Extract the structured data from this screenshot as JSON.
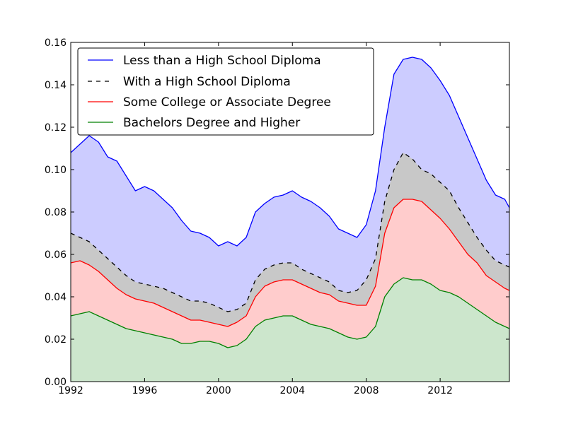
{
  "chart_data": {
    "type": "area",
    "title": "",
    "xlabel": "",
    "ylabel": "",
    "xlim": [
      1992,
      2015.75
    ],
    "ylim": [
      0,
      0.16
    ],
    "x_ticks": [
      1992,
      1996,
      2000,
      2004,
      2008,
      2012
    ],
    "x_tick_labels": [
      "1992",
      "1996",
      "2000",
      "2004",
      "2008",
      "2012"
    ],
    "y_ticks": [
      0,
      0.02,
      0.04,
      0.06,
      0.08,
      0.1,
      0.12,
      0.14,
      0.16
    ],
    "y_tick_labels": [
      "0.00",
      "0.02",
      "0.04",
      "0.06",
      "0.08",
      "0.10",
      "0.12",
      "0.14",
      "0.16"
    ],
    "grid": false,
    "legend": {
      "position": "top-left",
      "entries": [
        "Less than a High School Diploma",
        "With a High School Diploma",
        "Some College or Associate Degree",
        "Bachelors Degree and Higher"
      ]
    },
    "x": [
      1992,
      1992.5,
      1993,
      1993.5,
      1994,
      1994.5,
      1995,
      1995.5,
      1996,
      1996.5,
      1997,
      1997.5,
      1998,
      1998.5,
      1999,
      1999.5,
      2000,
      2000.5,
      2001,
      2001.5,
      2002,
      2002.5,
      2003,
      2003.5,
      2004,
      2004.5,
      2005,
      2005.5,
      2006,
      2006.5,
      2007,
      2007.5,
      2008,
      2008.5,
      2009,
      2009.5,
      2010,
      2010.5,
      2011,
      2011.5,
      2012,
      2012.5,
      2013,
      2013.5,
      2014,
      2014.5,
      2015,
      2015.5,
      2015.75
    ],
    "series": [
      {
        "name": "Less than a High School Diploma",
        "color": "#0000ff",
        "fill": "#ccccff",
        "line_style": "solid",
        "values": [
          0.108,
          0.112,
          0.116,
          0.113,
          0.106,
          0.104,
          0.097,
          0.09,
          0.092,
          0.09,
          0.086,
          0.082,
          0.076,
          0.071,
          0.07,
          0.068,
          0.064,
          0.066,
          0.064,
          0.068,
          0.08,
          0.084,
          0.087,
          0.088,
          0.09,
          0.087,
          0.085,
          0.082,
          0.078,
          0.072,
          0.07,
          0.068,
          0.074,
          0.09,
          0.12,
          0.145,
          0.152,
          0.153,
          0.152,
          0.148,
          0.142,
          0.135,
          0.125,
          0.115,
          0.105,
          0.095,
          0.088,
          0.086,
          0.082
        ]
      },
      {
        "name": "With a High School Diploma",
        "color": "#000000",
        "fill": "#c8c8c8",
        "line_style": "dashed",
        "values": [
          0.07,
          0.068,
          0.066,
          0.062,
          0.058,
          0.054,
          0.05,
          0.047,
          0.046,
          0.045,
          0.044,
          0.042,
          0.04,
          0.038,
          0.038,
          0.037,
          0.035,
          0.033,
          0.034,
          0.037,
          0.048,
          0.053,
          0.055,
          0.056,
          0.056,
          0.053,
          0.051,
          0.049,
          0.047,
          0.043,
          0.042,
          0.043,
          0.048,
          0.058,
          0.085,
          0.1,
          0.108,
          0.105,
          0.1,
          0.098,
          0.094,
          0.09,
          0.082,
          0.075,
          0.068,
          0.062,
          0.057,
          0.055,
          0.054
        ]
      },
      {
        "name": "Some College or Associate Degree",
        "color": "#ff0000",
        "fill": "#ffcccc",
        "line_style": "solid",
        "values": [
          0.056,
          0.057,
          0.055,
          0.052,
          0.048,
          0.044,
          0.041,
          0.039,
          0.038,
          0.037,
          0.035,
          0.033,
          0.031,
          0.029,
          0.029,
          0.028,
          0.027,
          0.026,
          0.028,
          0.031,
          0.04,
          0.045,
          0.047,
          0.048,
          0.048,
          0.046,
          0.044,
          0.042,
          0.041,
          0.038,
          0.037,
          0.036,
          0.036,
          0.045,
          0.07,
          0.082,
          0.086,
          0.086,
          0.085,
          0.081,
          0.077,
          0.072,
          0.066,
          0.06,
          0.056,
          0.05,
          0.047,
          0.044,
          0.043
        ]
      },
      {
        "name": "Bachelors Degree and Higher",
        "color": "#008000",
        "fill": "#cce6cc",
        "line_style": "solid",
        "values": [
          0.031,
          0.032,
          0.033,
          0.031,
          0.029,
          0.027,
          0.025,
          0.024,
          0.023,
          0.022,
          0.021,
          0.02,
          0.018,
          0.018,
          0.019,
          0.019,
          0.018,
          0.016,
          0.017,
          0.02,
          0.026,
          0.029,
          0.03,
          0.031,
          0.031,
          0.029,
          0.027,
          0.026,
          0.025,
          0.023,
          0.021,
          0.02,
          0.021,
          0.026,
          0.04,
          0.046,
          0.049,
          0.048,
          0.048,
          0.046,
          0.043,
          0.042,
          0.04,
          0.037,
          0.034,
          0.031,
          0.028,
          0.026,
          0.025
        ]
      }
    ]
  }
}
